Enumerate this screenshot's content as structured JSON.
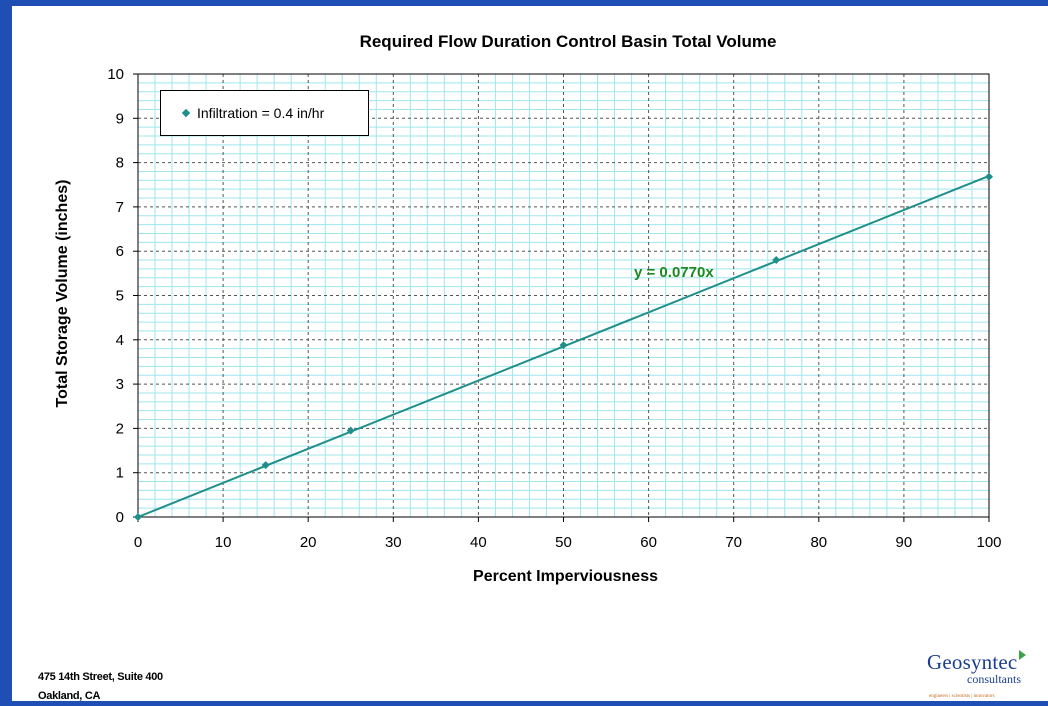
{
  "slide": {
    "address_line1": "475 14th Street, Suite 400",
    "address_line2": "Oakland, CA",
    "logo_name": "Geosyntec",
    "logo_sub": "consultants",
    "logo_tagline": "engineers | scientists | innovators"
  },
  "chart_data": {
    "type": "scatter",
    "title": "Required Flow Duration Control Basin Total Volume",
    "xlabel": "Percent Imperviousness",
    "ylabel": "Total Storage Volume (inches)",
    "xlim": [
      0,
      100
    ],
    "ylim": [
      0,
      10
    ],
    "x_ticks": [
      0,
      10,
      20,
      30,
      40,
      50,
      60,
      70,
      80,
      90,
      100
    ],
    "y_ticks": [
      0,
      1,
      2,
      3,
      4,
      5,
      6,
      7,
      8,
      9,
      10
    ],
    "grid": true,
    "legend_position": "top-left",
    "series": [
      {
        "name": "Infiltration = 0.4 in/hr",
        "color": "#1f8f8a",
        "x": [
          0,
          15,
          25,
          50,
          75,
          100
        ],
        "y": [
          0,
          1.17,
          1.95,
          3.88,
          5.8,
          7.68
        ]
      }
    ],
    "trendline": {
      "equation": "y = 0.0770x",
      "slope": 0.077,
      "color": "#1f8f8a",
      "label_color": "#1e8a1e"
    }
  }
}
